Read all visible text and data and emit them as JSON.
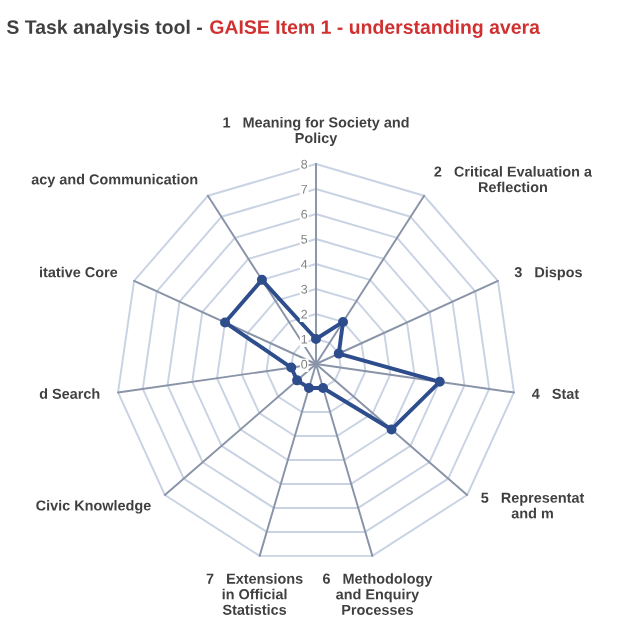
{
  "chart_data": {
    "type": "radar",
    "title": "S Task analysis tool -",
    "subtitle": "GAISE Item 1 - understanding avera",
    "categories": [
      "1   Meaning for Society and\nPolicy",
      "2   Critical Evaluation a\nReflection",
      "3   Dispos",
      "4   Stat",
      "5   Representat\nand m",
      "6   Methodology\nand Enquiry\nProcesses",
      "7   Extensions\nin Official\nStatistics",
      "Civic Knowledge",
      "d Search",
      "itative Core",
      "acy and Communication"
    ],
    "series": [
      {
        "color": "#2e4d8c",
        "values": [
          1,
          2,
          1,
          5,
          4,
          1,
          1,
          1,
          1,
          4,
          4
        ]
      }
    ],
    "ylim": [
      0,
      8
    ],
    "yticks": [
      0,
      1,
      2,
      3,
      4,
      5,
      6,
      7,
      8
    ],
    "grid": true,
    "marker": "circle",
    "line_style": "solid"
  }
}
